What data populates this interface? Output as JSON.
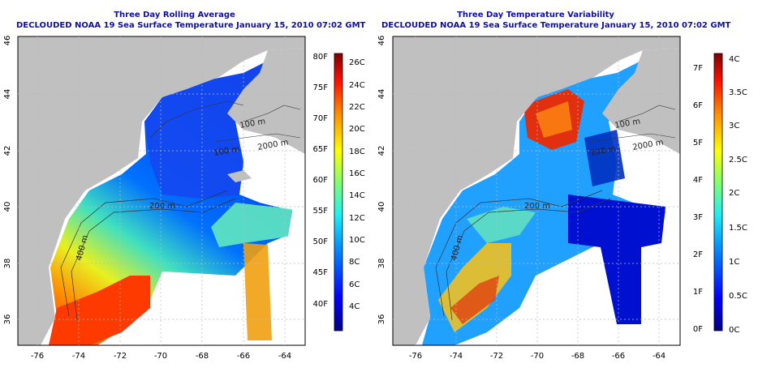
{
  "left": {
    "title_line1": "Three Day Rolling Average",
    "title_line2": "DECLOUDED NOAA 19 Sea Surface Temperature January 15, 2010 07:02 GMT",
    "colorbar_f": [
      "80F",
      "75F",
      "70F",
      "65F",
      "60F",
      "55F",
      "50F",
      "45F",
      "40F"
    ],
    "colorbar_c": [
      "26C",
      "24C",
      "22C",
      "20C",
      "18C",
      "16C",
      "14C",
      "12C",
      "10C",
      "8C",
      "6C",
      "4C"
    ]
  },
  "right": {
    "title_line1": "Three Day Temperature Variability",
    "title_line2": "DECLOUDED NOAA 19 Sea Surface Temperature January 15, 2010 07:02 GMT",
    "colorbar_f": [
      "7F",
      "6F",
      "5F",
      "4F",
      "3F",
      "2F",
      "1F",
      "0F"
    ],
    "colorbar_c": [
      "4C",
      "3.5C",
      "3C",
      "2.5C",
      "2C",
      "1.5C",
      "1C",
      "0.5C",
      "0C"
    ]
  },
  "axes": {
    "lon_ticks": [
      "-76",
      "-74",
      "-72",
      "-70",
      "-68",
      "-66",
      "-64"
    ],
    "lat_ticks": [
      "46",
      "44",
      "42",
      "40",
      "38",
      "36"
    ]
  },
  "contour_labels": {
    "label_100m_a": "100 m",
    "label_100m_b": "100 m",
    "label_2000m": "2000 m",
    "label_200m": "200 m",
    "label_400m": "400 m"
  },
  "colors": {
    "title": "#1010a0",
    "land": "#c0c0c0",
    "ocean": "#ffffff"
  }
}
